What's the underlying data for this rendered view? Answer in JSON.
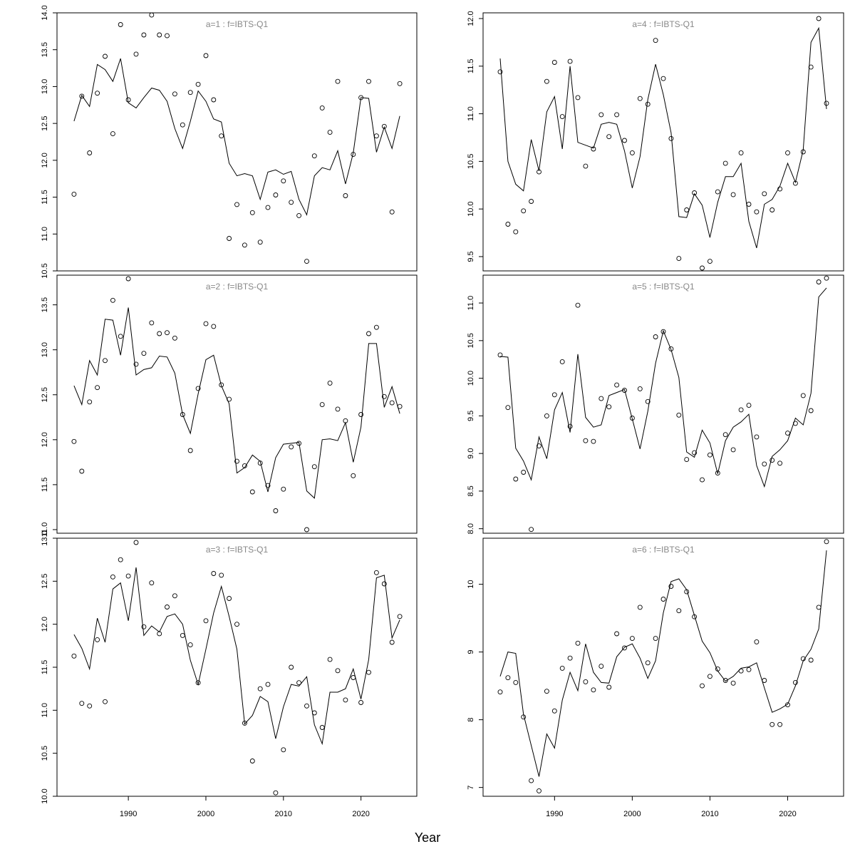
{
  "figure": {
    "xlabel": "Year"
  },
  "chart_data": [
    {
      "type": "scatter",
      "title": "a=1  :  f=IBTS-Q1",
      "xlim": [
        1980.8,
        2027.2
      ],
      "ylim": [
        10.5,
        14.0
      ],
      "yticks": [
        10.5,
        11.0,
        11.5,
        12.0,
        12.5,
        13.0,
        13.5,
        14.0
      ],
      "xticks": [
        1990,
        2000,
        2010,
        2020
      ],
      "x": [
        1983,
        1984,
        1985,
        1986,
        1987,
        1988,
        1989,
        1990,
        1991,
        1992,
        1993,
        1994,
        1995,
        1996,
        1997,
        1998,
        1999,
        2000,
        2001,
        2002,
        2003,
        2004,
        2005,
        2006,
        2007,
        2008,
        2009,
        2010,
        2011,
        2012,
        2013,
        2014,
        2015,
        2016,
        2017,
        2018,
        2019,
        2020,
        2021,
        2022,
        2023,
        2024,
        2025
      ],
      "series": [
        {
          "type": "scatter",
          "values": [
            11.54,
            12.87,
            12.1,
            12.91,
            13.41,
            12.36,
            13.84,
            12.82,
            13.44,
            13.7,
            13.97,
            13.7,
            13.69,
            12.9,
            12.48,
            12.92,
            13.03,
            13.42,
            12.82,
            12.33,
            10.94,
            11.4,
            10.85,
            11.29,
            10.89,
            11.36,
            11.53,
            11.72,
            11.43,
            11.25,
            10.63,
            12.06,
            12.71,
            12.38,
            13.07,
            11.52,
            12.08,
            12.85,
            13.07,
            12.33,
            12.46,
            11.3,
            13.04
          ]
        },
        {
          "type": "line",
          "values": [
            12.53,
            12.88,
            12.73,
            13.3,
            13.23,
            13.07,
            13.38,
            12.78,
            12.71,
            12.85,
            12.98,
            12.95,
            12.8,
            12.43,
            12.16,
            12.53,
            12.94,
            12.8,
            12.56,
            12.52,
            11.96,
            11.79,
            11.82,
            11.79,
            11.47,
            11.84,
            11.87,
            11.81,
            11.85,
            11.47,
            11.26,
            11.79,
            11.9,
            11.87,
            12.13,
            11.68,
            12.1,
            12.85,
            12.84,
            12.11,
            12.45,
            12.16,
            12.6
          ]
        }
      ]
    },
    {
      "type": "scatter",
      "title": "a=2  :  f=IBTS-Q1",
      "xlim": [
        1980.8,
        2027.2
      ],
      "ylim": [
        10.96,
        13.83
      ],
      "yticks": [
        11.0,
        11.5,
        12.0,
        12.5,
        13.0,
        13.5
      ],
      "xticks": [
        1990,
        2000,
        2010,
        2020
      ],
      "x": [
        1983,
        1984,
        1985,
        1986,
        1987,
        1988,
        1989,
        1990,
        1991,
        1992,
        1993,
        1994,
        1995,
        1996,
        1997,
        1998,
        1999,
        2000,
        2001,
        2002,
        2003,
        2004,
        2005,
        2006,
        2007,
        2008,
        2009,
        2010,
        2011,
        2012,
        2013,
        2014,
        2015,
        2016,
        2017,
        2018,
        2019,
        2020,
        2021,
        2022,
        2023,
        2024,
        2025
      ],
      "series": [
        {
          "type": "scatter",
          "values": [
            11.98,
            11.65,
            12.42,
            12.58,
            12.88,
            13.55,
            13.15,
            13.79,
            12.84,
            12.96,
            13.3,
            13.18,
            13.19,
            13.13,
            12.28,
            11.88,
            12.57,
            13.29,
            13.26,
            12.61,
            12.45,
            11.76,
            11.71,
            11.42,
            11.74,
            11.49,
            11.21,
            11.45,
            11.92,
            11.96,
            11.0,
            11.7,
            12.39,
            12.63,
            12.34,
            12.21,
            11.6,
            12.28,
            13.18,
            13.25,
            12.48,
            12.41,
            12.37
          ]
        },
        {
          "type": "line",
          "values": [
            12.6,
            12.39,
            12.88,
            12.72,
            13.34,
            13.33,
            12.94,
            13.47,
            12.72,
            12.78,
            12.8,
            12.93,
            12.92,
            12.74,
            12.28,
            12.07,
            12.51,
            12.89,
            12.94,
            12.6,
            12.4,
            11.63,
            11.69,
            11.83,
            11.76,
            11.42,
            11.8,
            11.95,
            11.96,
            11.97,
            11.43,
            11.35,
            12.0,
            12.01,
            11.99,
            12.19,
            11.75,
            12.14,
            13.07,
            13.07,
            12.36,
            12.59,
            12.29
          ]
        }
      ]
    },
    {
      "type": "scatter",
      "title": "a=3  :  f=IBTS-Q1",
      "xlim": [
        1980.8,
        2027.2
      ],
      "ylim": [
        10.0,
        13.0
      ],
      "yticks": [
        10.0,
        10.5,
        11.0,
        11.5,
        12.0,
        12.5,
        13.0
      ],
      "xticks": [
        1990,
        2000,
        2010,
        2020
      ],
      "x": [
        1983,
        1984,
        1985,
        1986,
        1987,
        1988,
        1989,
        1990,
        1991,
        1992,
        1993,
        1994,
        1995,
        1996,
        1997,
        1998,
        1999,
        2000,
        2001,
        2002,
        2003,
        2004,
        2005,
        2006,
        2007,
        2008,
        2009,
        2010,
        2011,
        2012,
        2013,
        2014,
        2015,
        2016,
        2017,
        2018,
        2019,
        2020,
        2021,
        2022,
        2023,
        2024,
        2025
      ],
      "series": [
        {
          "type": "scatter",
          "values": [
            11.63,
            11.08,
            11.05,
            11.82,
            11.1,
            12.55,
            12.75,
            12.56,
            12.95,
            11.97,
            12.48,
            11.89,
            12.2,
            12.33,
            11.87,
            11.76,
            11.32,
            12.04,
            12.59,
            12.57,
            12.3,
            12.0,
            10.85,
            10.41,
            11.25,
            11.3,
            10.04,
            10.54,
            11.5,
            11.32,
            11.05,
            10.97,
            10.8,
            11.59,
            11.46,
            11.12,
            11.38,
            11.09,
            11.44,
            12.6,
            12.47,
            11.79,
            12.09
          ]
        },
        {
          "type": "line",
          "values": [
            11.88,
            11.72,
            11.48,
            12.07,
            11.79,
            12.41,
            12.48,
            12.04,
            12.66,
            11.87,
            11.98,
            11.91,
            12.09,
            12.12,
            12.0,
            11.58,
            11.3,
            11.71,
            12.13,
            12.44,
            12.09,
            11.71,
            10.84,
            10.94,
            11.16,
            11.1,
            10.67,
            11.04,
            11.3,
            11.28,
            11.39,
            10.83,
            10.61,
            11.21,
            11.21,
            11.25,
            11.48,
            11.13,
            11.59,
            12.54,
            12.57,
            11.84,
            12.05
          ]
        }
      ]
    },
    {
      "type": "scatter",
      "title": "a=4  :  f=IBTS-Q1",
      "xlim": [
        1980.8,
        2027.2
      ],
      "ylim": [
        9.35,
        12.06
      ],
      "yticks": [
        9.5,
        10.0,
        10.5,
        11.0,
        11.5,
        12.0
      ],
      "xticks": [
        1990,
        2000,
        2010,
        2020
      ],
      "x": [
        1983,
        1984,
        1985,
        1986,
        1987,
        1988,
        1989,
        1990,
        1991,
        1992,
        1993,
        1994,
        1995,
        1996,
        1997,
        1998,
        1999,
        2000,
        2001,
        2002,
        2003,
        2004,
        2005,
        2006,
        2007,
        2008,
        2009,
        2010,
        2011,
        2012,
        2013,
        2014,
        2015,
        2016,
        2017,
        2018,
        2019,
        2020,
        2021,
        2022,
        2023,
        2024,
        2025
      ],
      "series": [
        {
          "type": "scatter",
          "values": [
            11.44,
            9.84,
            9.76,
            9.98,
            10.08,
            10.39,
            11.34,
            11.54,
            10.97,
            11.55,
            11.17,
            10.45,
            10.63,
            10.99,
            10.76,
            10.99,
            10.72,
            10.59,
            11.16,
            11.1,
            11.77,
            11.37,
            10.74,
            9.48,
            9.99,
            10.17,
            9.38,
            9.45,
            10.18,
            10.48,
            10.15,
            10.59,
            10.05,
            9.97,
            10.16,
            9.99,
            10.21,
            10.59,
            10.27,
            10.6,
            11.49,
            12.0,
            11.11
          ]
        },
        {
          "type": "line",
          "values": [
            11.58,
            10.5,
            10.26,
            10.19,
            10.73,
            10.4,
            11.02,
            11.18,
            10.63,
            11.5,
            10.7,
            10.67,
            10.64,
            10.89,
            10.91,
            10.89,
            10.61,
            10.22,
            10.55,
            11.15,
            11.52,
            11.2,
            10.8,
            9.92,
            9.91,
            10.16,
            10.04,
            9.7,
            10.07,
            10.34,
            10.34,
            10.48,
            9.87,
            9.59,
            10.05,
            10.1,
            10.24,
            10.48,
            10.28,
            10.62,
            11.75,
            11.9,
            11.05
          ]
        }
      ]
    },
    {
      "type": "scatter",
      "title": "a=5  :  f=IBTS-Q1",
      "xlim": [
        1980.8,
        2027.2
      ],
      "ylim": [
        7.94,
        11.37
      ],
      "yticks": [
        8.0,
        8.5,
        9.0,
        9.5,
        10.0,
        10.5,
        11.0
      ],
      "xticks": [
        1990,
        2000,
        2010,
        2020
      ],
      "x": [
        1983,
        1984,
        1985,
        1986,
        1987,
        1988,
        1989,
        1990,
        1991,
        1992,
        1993,
        1994,
        1995,
        1996,
        1997,
        1998,
        1999,
        2000,
        2001,
        2002,
        2003,
        2004,
        2005,
        2006,
        2007,
        2008,
        2009,
        2010,
        2011,
        2012,
        2013,
        2014,
        2015,
        2016,
        2017,
        2018,
        2019,
        2020,
        2021,
        2022,
        2023,
        2024,
        2025
      ],
      "series": [
        {
          "type": "scatter",
          "values": [
            10.31,
            9.61,
            8.66,
            8.75,
            7.99,
            9.1,
            9.5,
            9.78,
            10.22,
            9.36,
            10.97,
            9.17,
            9.16,
            9.73,
            9.62,
            9.91,
            9.84,
            9.47,
            9.86,
            9.69,
            10.55,
            10.62,
            10.39,
            9.51,
            8.92,
            9.01,
            8.65,
            8.98,
            8.74,
            9.25,
            9.05,
            9.58,
            9.64,
            9.22,
            8.86,
            8.91,
            8.87,
            9.27,
            9.4,
            9.77,
            9.57,
            11.28,
            11.33
          ]
        },
        {
          "type": "line",
          "values": [
            10.29,
            10.28,
            9.07,
            8.9,
            8.65,
            9.22,
            8.93,
            9.58,
            9.81,
            9.28,
            10.32,
            9.48,
            9.35,
            9.38,
            9.77,
            9.81,
            9.85,
            9.46,
            9.06,
            9.56,
            10.2,
            10.63,
            10.38,
            10.01,
            9.02,
            8.95,
            9.31,
            9.14,
            8.73,
            9.17,
            9.35,
            9.42,
            9.52,
            8.84,
            8.56,
            8.96,
            9.05,
            9.17,
            9.47,
            9.38,
            9.8,
            11.08,
            11.2
          ]
        }
      ]
    },
    {
      "type": "scatter",
      "title": "a=6  :  f=IBTS-Q1",
      "xlim": [
        1980.8,
        2027.2
      ],
      "ylim": [
        6.87,
        10.68
      ],
      "yticks": [
        7,
        8,
        9,
        10
      ],
      "xticks": [
        1990,
        2000,
        2010,
        2020
      ],
      "x": [
        1983,
        1984,
        1985,
        1986,
        1987,
        1988,
        1989,
        1990,
        1991,
        1992,
        1993,
        1994,
        1995,
        1996,
        1997,
        1998,
        1999,
        2000,
        2001,
        2002,
        2003,
        2004,
        2005,
        2006,
        2007,
        2008,
        2009,
        2010,
        2011,
        2012,
        2013,
        2014,
        2015,
        2016,
        2017,
        2018,
        2019,
        2020,
        2021,
        2022,
        2023,
        2024,
        2025
      ],
      "series": [
        {
          "type": "scatter",
          "values": [
            8.41,
            8.62,
            8.55,
            8.04,
            7.1,
            6.95,
            8.42,
            8.13,
            8.76,
            8.91,
            9.13,
            8.56,
            8.44,
            8.79,
            8.48,
            9.27,
            9.06,
            9.2,
            9.66,
            8.84,
            9.2,
            9.78,
            9.97,
            9.61,
            9.89,
            9.52,
            8.5,
            8.64,
            8.75,
            8.58,
            8.54,
            8.72,
            8.74,
            9.15,
            8.58,
            7.93,
            7.93,
            8.22,
            8.55,
            8.9,
            8.88,
            9.66,
            10.63
          ]
        },
        {
          "type": "line",
          "values": [
            8.64,
            9.0,
            8.98,
            8.08,
            7.62,
            7.16,
            7.79,
            7.58,
            8.29,
            8.7,
            8.43,
            9.12,
            8.7,
            8.55,
            8.54,
            8.93,
            9.07,
            9.12,
            8.91,
            8.61,
            8.87,
            9.58,
            10.04,
            10.08,
            9.92,
            9.54,
            9.16,
            8.99,
            8.72,
            8.57,
            8.64,
            8.76,
            8.78,
            8.84,
            8.47,
            8.11,
            8.16,
            8.23,
            8.5,
            8.87,
            9.04,
            9.34,
            10.5
          ]
        }
      ]
    }
  ]
}
